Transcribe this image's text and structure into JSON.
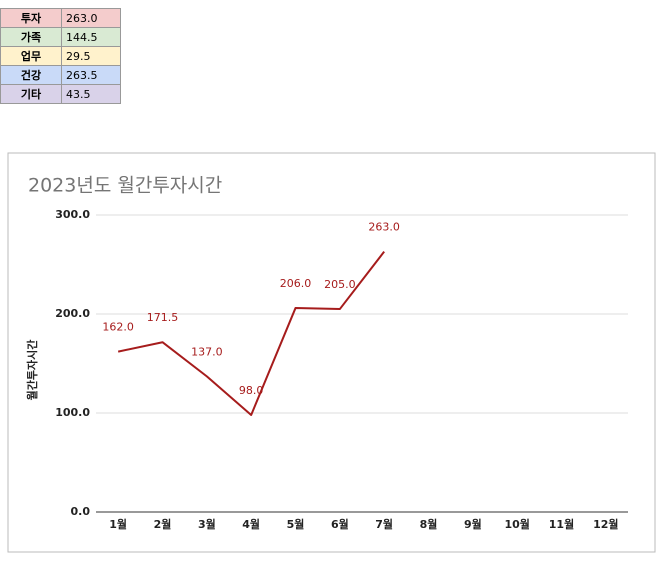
{
  "table": {
    "rows": [
      [
        "투자",
        "263.0"
      ],
      [
        "가족",
        "144.5"
      ],
      [
        "업무",
        "29.5"
      ],
      [
        "건강",
        "263.5"
      ],
      [
        "기타",
        "43.5"
      ]
    ],
    "colors": [
      "#f4cccc",
      "#d9ead3",
      "#fff2cc",
      "#c9daf8",
      "#d9d2e9"
    ]
  },
  "chart_data": {
    "type": "line",
    "title": "2023년도 월간투자시간",
    "y_label": "월간투자시간",
    "categories": [
      "1월",
      "2월",
      "3월",
      "4월",
      "5월",
      "6월",
      "7월",
      "8월",
      "9월",
      "10월",
      "11월",
      "12월"
    ],
    "series": [
      {
        "name": "월간투자시간",
        "color": "#a61c1c",
        "values": [
          162,
          171.5,
          137,
          98,
          206,
          205,
          263,
          null,
          null,
          null,
          null,
          null
        ],
        "value_labels": [
          "162.0",
          "171.5",
          "137.0",
          "98.0",
          "206.0",
          "205.0",
          "263.0",
          null,
          null,
          null,
          null,
          null
        ]
      }
    ],
    "ylim": [
      0,
      300
    ],
    "yticks": [
      {
        "value": 0,
        "label": "0.0"
      },
      {
        "value": 100,
        "label": "100.0"
      },
      {
        "value": 200,
        "label": "200.0"
      },
      {
        "value": 300,
        "label": "300.0"
      }
    ],
    "grid": true
  }
}
